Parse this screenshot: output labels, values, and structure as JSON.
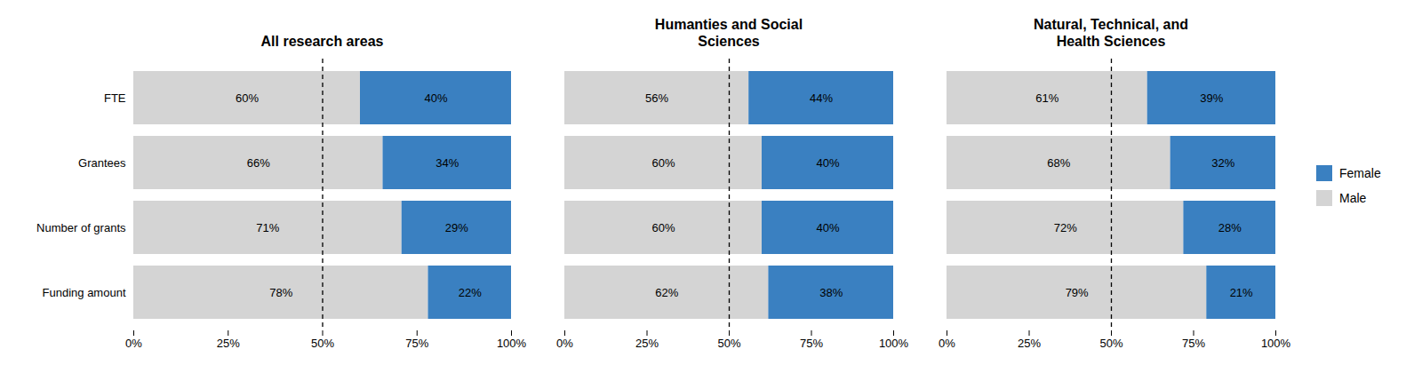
{
  "chart_data": [
    {
      "type": "bar",
      "title": "All research areas",
      "orientation": "horizontal",
      "stacked": true,
      "data_labels": true,
      "categories": [
        "FTE",
        "Grantees",
        "Number of grants",
        "Funding amount"
      ],
      "series": [
        {
          "name": "Male",
          "color": "#d4d4d4",
          "values": [
            60,
            66,
            71,
            78
          ],
          "value_labels": [
            "60%",
            "66%",
            "71%",
            "78%"
          ]
        },
        {
          "name": "Female",
          "color": "#3a80c1",
          "values": [
            40,
            34,
            29,
            22
          ],
          "value_labels": [
            "40%",
            "34%",
            "29%",
            "22%"
          ]
        }
      ],
      "xlim": [
        0,
        100
      ],
      "xticks": [
        {
          "value": 0,
          "label": "0%"
        },
        {
          "value": 25,
          "label": "25%"
        },
        {
          "value": 50,
          "label": "50%"
        },
        {
          "value": 75,
          "label": "75%"
        },
        {
          "value": 100,
          "label": "100%"
        }
      ],
      "reference_line": 50
    },
    {
      "type": "bar",
      "title": "Humanties and Social\nSciences",
      "orientation": "horizontal",
      "stacked": true,
      "data_labels": true,
      "tick_labels": "x",
      "categories": [
        "FTE",
        "Grantees",
        "Number of grants",
        "Funding amount"
      ],
      "series": [
        {
          "name": "Male",
          "color": "#d4d4d4",
          "values": [
            56,
            60,
            60,
            62
          ],
          "value_labels": [
            "56%",
            "60%",
            "60%",
            "62%"
          ]
        },
        {
          "name": "Female",
          "color": "#3a80c1",
          "values": [
            44,
            40,
            40,
            38
          ],
          "value_labels": [
            "44%",
            "40%",
            "40%",
            "38%"
          ]
        }
      ],
      "xlim": [
        0,
        100
      ],
      "xticks": [
        {
          "value": 0,
          "label": "0%"
        },
        {
          "value": 25,
          "label": "25%"
        },
        {
          "value": 50,
          "label": "50%"
        },
        {
          "value": 75,
          "label": "75%"
        },
        {
          "value": 100,
          "label": "100%"
        }
      ],
      "reference_line": 50
    },
    {
      "type": "bar",
      "title": "Natural, Technical, and\nHealth Sciences",
      "orientation": "horizontal",
      "stacked": true,
      "data_labels": true,
      "tick_labels": "x",
      "legend": "right",
      "categories": [
        "FTE",
        "Grantees",
        "Number of grants",
        "Funding amount"
      ],
      "series": [
        {
          "name": "Male",
          "color": "#d4d4d4",
          "values": [
            61,
            68,
            72,
            79
          ],
          "value_labels": [
            "61%",
            "68%",
            "72%",
            "79%"
          ]
        },
        {
          "name": "Female",
          "color": "#3a80c1",
          "values": [
            39,
            32,
            28,
            21
          ],
          "value_labels": [
            "39%",
            "32%",
            "28%",
            "21%"
          ]
        }
      ],
      "xlim": [
        0,
        100
      ],
      "xticks": [
        {
          "value": 0,
          "label": "0%"
        },
        {
          "value": 25,
          "label": "25%"
        },
        {
          "value": 50,
          "label": "50%"
        },
        {
          "value": 75,
          "label": "75%"
        },
        {
          "value": 100,
          "label": "100%"
        }
      ],
      "reference_line": 50
    }
  ]
}
